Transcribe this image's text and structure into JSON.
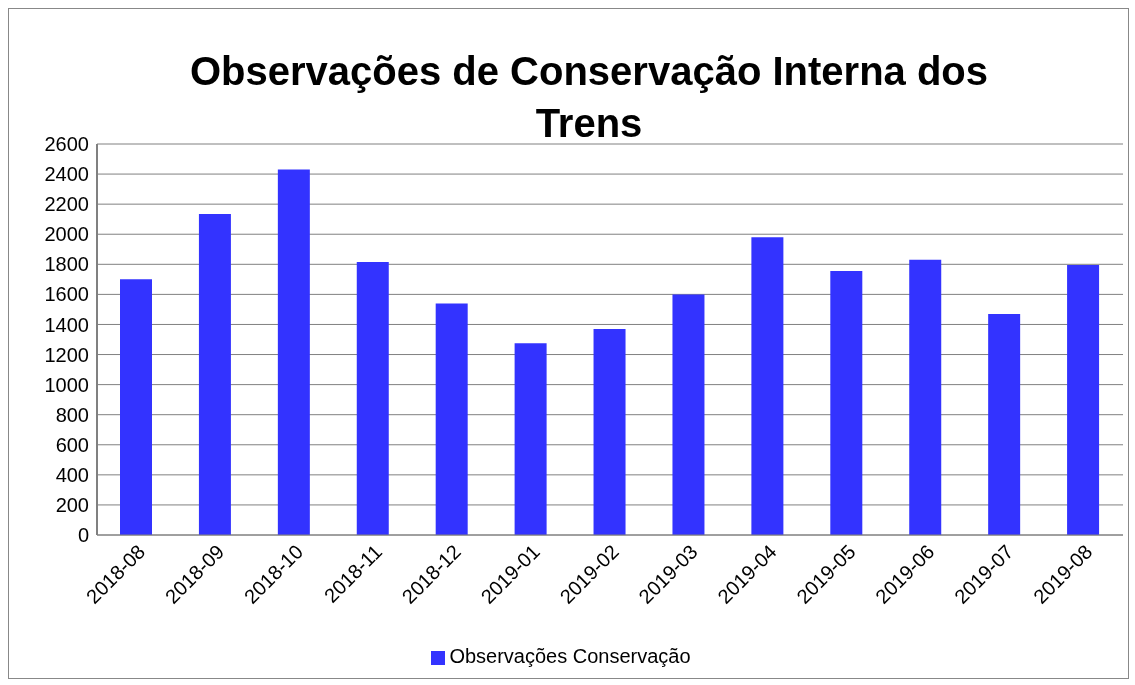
{
  "chart_data": {
    "type": "bar",
    "title": "Observações de Conservação Interna dos Trens",
    "categories": [
      "2018-08",
      "2018-09",
      "2018-10",
      "2018-11",
      "2018-12",
      "2019-01",
      "2019-02",
      "2019-03",
      "2019-04",
      "2019-05",
      "2019-06",
      "2019-07",
      "2019-08"
    ],
    "series": [
      {
        "name": "Observações Conservação",
        "color": "#3333ff",
        "values": [
          1700,
          2135,
          2430,
          1815,
          1540,
          1275,
          1370,
          1600,
          1980,
          1755,
          1830,
          1470,
          1795
        ]
      }
    ],
    "ylim": [
      0,
      2600
    ],
    "yticks": [
      0,
      200,
      400,
      600,
      800,
      1000,
      1200,
      1400,
      1600,
      1800,
      2000,
      2200,
      2400,
      2600
    ],
    "grid": "y",
    "legend": "bottom"
  }
}
